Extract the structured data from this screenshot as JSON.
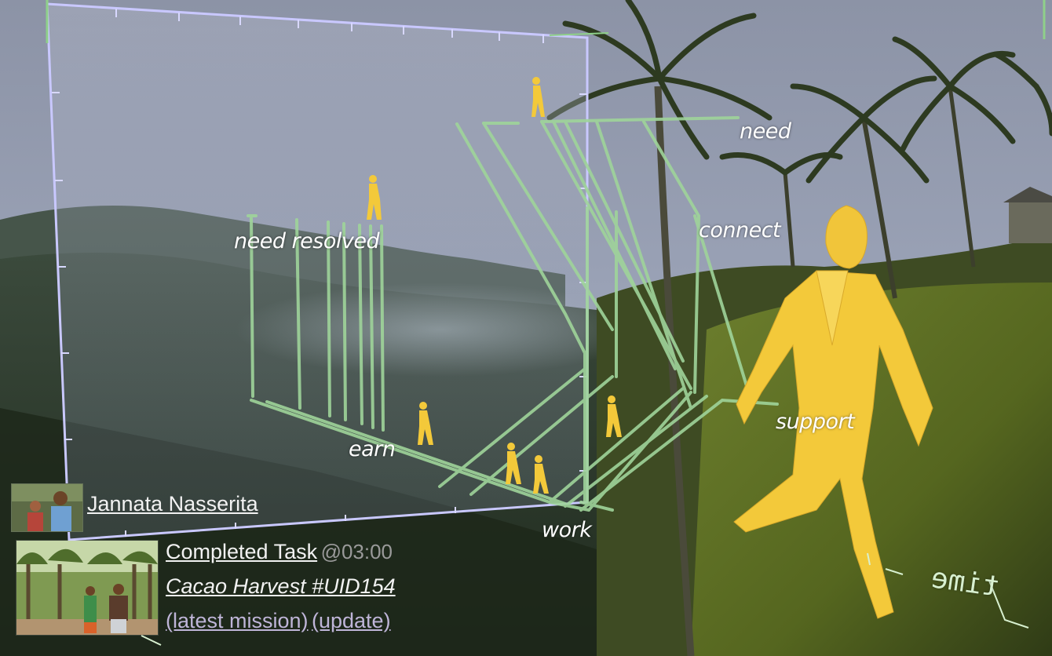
{
  "colors": {
    "sky": "#98a0b4",
    "panel_frame": "#c9c8ff",
    "track_green": "#9fd49a",
    "figure_yellow": "#f3c93a",
    "link_white": "#f2f2f2",
    "link_muted": "#bfb5d8",
    "timestamp": "#9a9a9a"
  },
  "labels": {
    "need": "need",
    "connect": "connect",
    "need_resolved": "need resolved",
    "support": "support",
    "earn": "earn",
    "work": "work",
    "time_axis": "time"
  },
  "user": {
    "name": "Jannata Nasserita",
    "avatar_icon": "person-photo-icon"
  },
  "task": {
    "status_label": "Completed Task",
    "timestamp": "@03:00",
    "title": "Cacao Harvest #UID154",
    "latest_mission_link": "(latest mission)",
    "update_link": "(update)",
    "thumbnail_icon": "harvest-photo-icon"
  }
}
